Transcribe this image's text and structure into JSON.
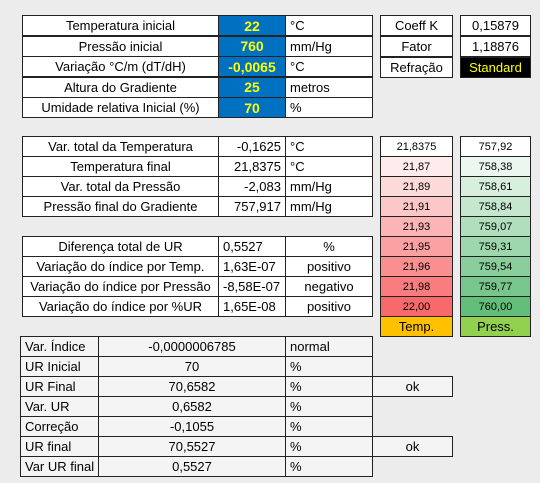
{
  "inputs": [
    [
      "Temperatura inicial",
      "22",
      "°C"
    ],
    [
      "Pressão inicial",
      "760",
      "mm/Hg"
    ],
    [
      "Variação °C/m (dT/dH)",
      "-0,0065",
      "°C"
    ],
    [
      "Altura do Gradiente",
      "25",
      "metros"
    ],
    [
      "Umidade relativa Inicial (%)",
      "70",
      "%"
    ]
  ],
  "coefficients": [
    [
      "Coeff K",
      "0,15879"
    ],
    [
      "Fator",
      "1,18876"
    ],
    [
      "Refração",
      "Standard"
    ]
  ],
  "gradient": [
    [
      "Var. total da Temperatura",
      "-0,1625",
      "°C"
    ],
    [
      "Temperatura final",
      "21,8375",
      "°C"
    ],
    [
      "Var. total da Pressão",
      "-2,083",
      "mm/Hg"
    ],
    [
      "Pressão final do Gradiente",
      "757,917",
      "mm/Hg"
    ]
  ],
  "humidity": [
    [
      "Diferença total de UR",
      "0,5527",
      "%"
    ],
    [
      "Variação do índice por Temp.",
      "1,63E-07",
      "positivo"
    ],
    [
      "Variação do índice por Pressão",
      "-8,58E-07",
      "negativo"
    ],
    [
      "Variação do índice por %UR",
      "1,65E-08",
      "positivo"
    ]
  ],
  "scale": {
    "temp": [
      "21,8375",
      "21,87",
      "21,89",
      "21,91",
      "21,93",
      "21,95",
      "21,96",
      "21,98",
      "22,00"
    ],
    "press": [
      "757,92",
      "758,38",
      "758,61",
      "758,84",
      "759,07",
      "759,31",
      "759,54",
      "759,77",
      "760,00"
    ],
    "headers": [
      "Temp.",
      "Press."
    ]
  },
  "summary": [
    [
      "Var. Índice",
      "-0,0000006785",
      "normal"
    ],
    [
      "UR Inicial",
      "70",
      "%"
    ],
    [
      "UR Final",
      "70,6582",
      "%",
      "ok"
    ],
    [
      "Var. UR",
      "0,6582",
      "%"
    ],
    [
      "Correção",
      "-0,1055",
      "%"
    ],
    [
      "UR final",
      "70,5527",
      "%",
      "ok"
    ],
    [
      "Var UR final",
      "0,5527",
      "%"
    ]
  ]
}
